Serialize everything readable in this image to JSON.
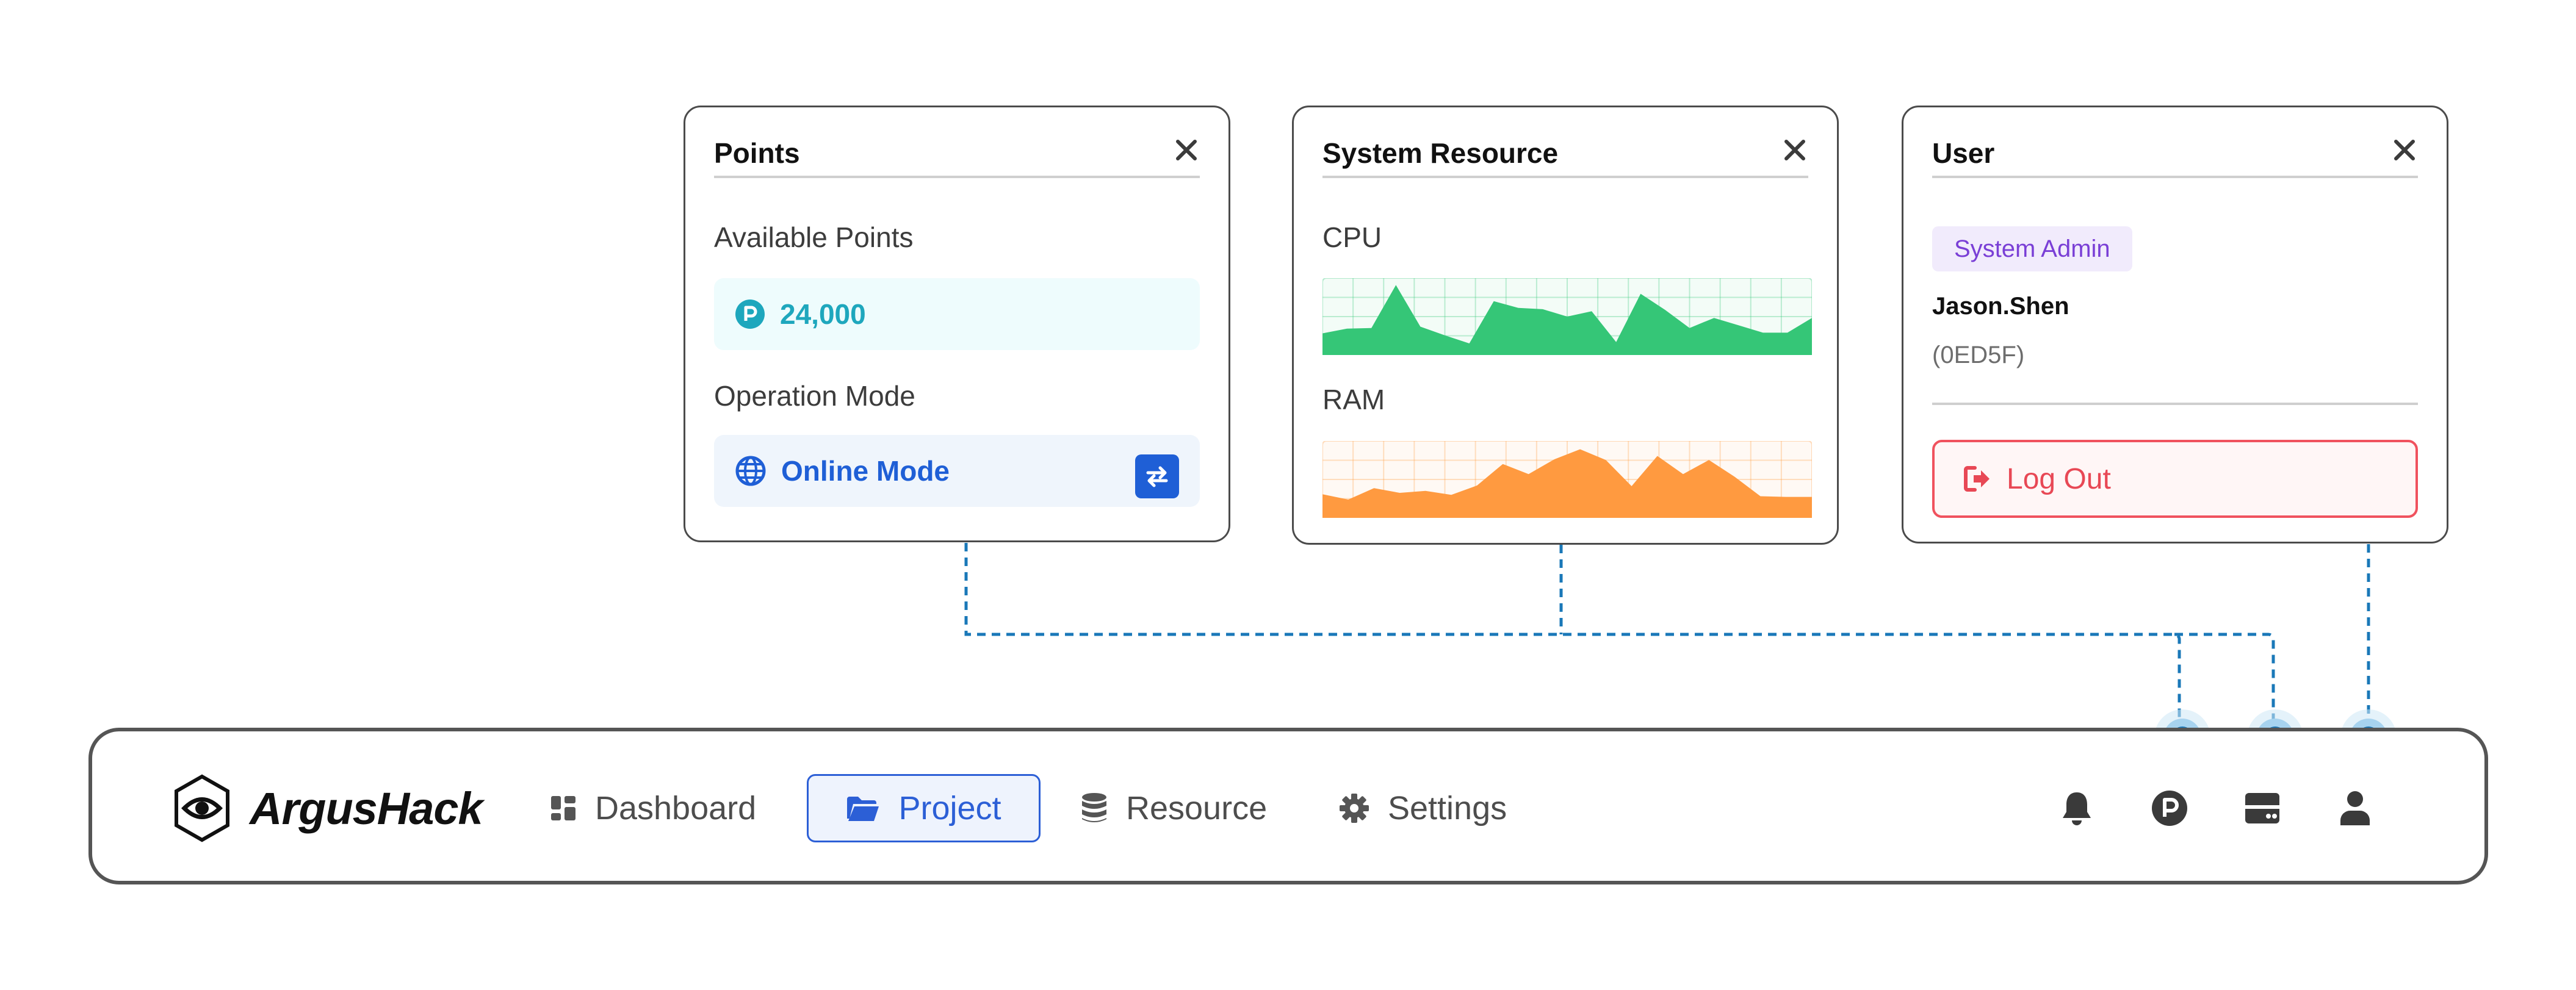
{
  "points_panel": {
    "title": "Points",
    "available_label": "Available Points",
    "points_value": "24,000",
    "operation_label": "Operation Mode",
    "mode_value": "Online Mode"
  },
  "system_panel": {
    "title": "System Resource",
    "cpu_label": "CPU",
    "ram_label": "RAM",
    "cpu_series": [
      0.25,
      0.32,
      0.33,
      0.97,
      0.35,
      0.22,
      0.1,
      0.73,
      0.63,
      0.61,
      0.5,
      0.58,
      0.12,
      0.84,
      0.6,
      0.33,
      0.48,
      0.37,
      0.26,
      0.26,
      0.48
    ],
    "ram_series": [
      0.28,
      0.2,
      0.37,
      0.3,
      0.33,
      0.27,
      0.41,
      0.73,
      0.58,
      0.8,
      0.95,
      0.79,
      0.4,
      0.85,
      0.58,
      0.79,
      0.54,
      0.25,
      0.24,
      0.24
    ],
    "cpu_color": "#35c677",
    "ram_color": "#ff9a40"
  },
  "user_panel": {
    "title": "User",
    "role": "System Admin",
    "name": "Jason.Shen",
    "id": "(0ED5F)",
    "logout_label": "Log Out"
  },
  "navbar": {
    "brand": "ArgusHack",
    "items": [
      {
        "label": "Dashboard",
        "icon": "dashboard-icon"
      },
      {
        "label": "Project",
        "icon": "folder-icon",
        "active": true
      },
      {
        "label": "Resource",
        "icon": "database-icon"
      },
      {
        "label": "Settings",
        "icon": "gear-icon"
      }
    ],
    "right_icons": [
      "bell-icon",
      "points-icon",
      "server-icon",
      "user-icon"
    ]
  },
  "colors": {
    "accent": "#2c5fd6",
    "points": "#1ea7bd",
    "danger": "#e84855",
    "role": "#7a3fd6",
    "connector": "#1a78b8"
  }
}
